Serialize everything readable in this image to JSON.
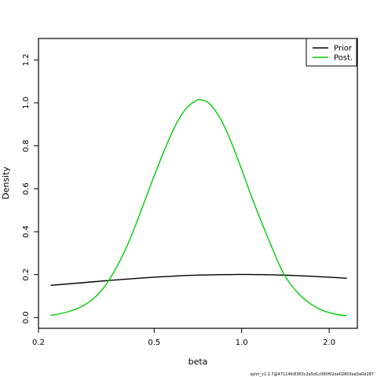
{
  "chart_data": {
    "type": "line",
    "xlabel": "beta",
    "ylabel": "Density",
    "x_scale": "log",
    "xlim": [
      0.2,
      2.5
    ],
    "ylim": [
      -0.05,
      1.3
    ],
    "x_ticks": [
      {
        "value": 0.2,
        "label": "0.2"
      },
      {
        "value": 0.5,
        "label": "0.5"
      },
      {
        "value": 1.0,
        "label": "1.0"
      },
      {
        "value": 2.0,
        "label": "2.0"
      }
    ],
    "y_ticks": [
      {
        "value": 0.0,
        "label": "0.0"
      },
      {
        "value": 0.2,
        "label": "0.2"
      },
      {
        "value": 0.4,
        "label": "0.4"
      },
      {
        "value": 0.6,
        "label": "0.6"
      },
      {
        "value": 0.8,
        "label": "0.8"
      },
      {
        "value": 1.0,
        "label": "1.0"
      },
      {
        "value": 1.2,
        "label": "1.2"
      }
    ],
    "grid": false,
    "legend_position": "top-right",
    "series": [
      {
        "name": "Prior",
        "color": "#000000",
        "x": [
          0.22,
          0.27,
          0.33,
          0.4,
          0.5,
          0.6,
          0.72,
          0.85,
          1.0,
          1.2,
          1.45,
          1.75,
          2.0,
          2.3
        ],
        "y": [
          0.15,
          0.16,
          0.17,
          0.179,
          0.188,
          0.194,
          0.198,
          0.2,
          0.201,
          0.2,
          0.197,
          0.192,
          0.188,
          0.183
        ]
      },
      {
        "name": "Post.",
        "color": "#00cc00",
        "x": [
          0.22,
          0.25,
          0.28,
          0.31,
          0.34,
          0.38,
          0.42,
          0.46,
          0.5,
          0.55,
          0.6,
          0.65,
          0.7,
          0.72,
          0.76,
          0.8,
          0.85,
          0.9,
          0.95,
          1.0,
          1.07,
          1.15,
          1.25,
          1.4,
          1.6,
          1.85,
          2.1,
          2.3
        ],
        "y": [
          0.01,
          0.025,
          0.05,
          0.09,
          0.15,
          0.26,
          0.39,
          0.53,
          0.66,
          0.8,
          0.91,
          0.98,
          1.012,
          1.015,
          1.005,
          0.975,
          0.92,
          0.85,
          0.77,
          0.69,
          0.58,
          0.47,
          0.35,
          0.2,
          0.1,
          0.04,
          0.016,
          0.009
        ]
      }
    ]
  },
  "footer_note": "spict_v1.2.7@47114fc8363c2a5d1c080f02ee02803ea5a0d287"
}
